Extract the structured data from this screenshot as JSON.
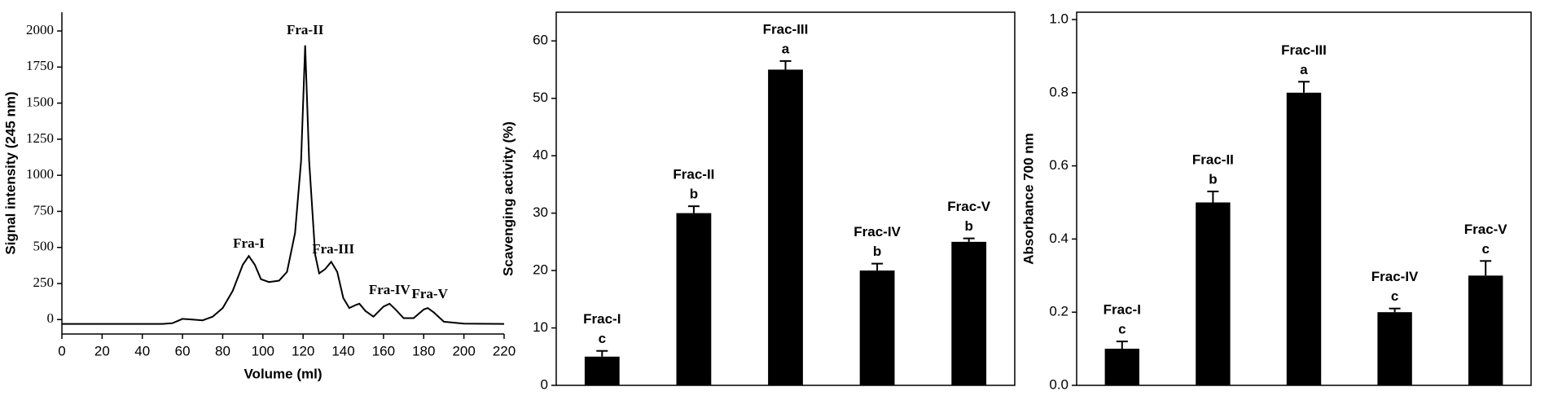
{
  "chart_data": [
    {
      "type": "line",
      "xlabel": "Volume (ml)",
      "ylabel": "Signal intensity (245 nm)",
      "x": [
        0,
        50,
        55,
        60,
        65,
        70,
        75,
        80,
        85,
        90,
        93,
        96,
        99,
        103,
        108,
        112,
        116,
        119,
        121,
        123,
        126,
        128,
        131,
        134,
        137,
        140,
        143,
        146,
        148,
        151,
        155,
        160,
        163,
        166,
        170,
        175,
        180,
        182,
        185,
        190,
        200,
        220
      ],
      "values": [
        -30,
        -30,
        -25,
        5,
        0,
        -5,
        20,
        80,
        200,
        380,
        440,
        380,
        280,
        260,
        270,
        330,
        600,
        1100,
        1900,
        1100,
        450,
        320,
        350,
        400,
        330,
        150,
        80,
        100,
        110,
        60,
        20,
        90,
        110,
        70,
        10,
        10,
        70,
        80,
        50,
        -15,
        -28,
        -30
      ],
      "color": "#000000",
      "annotations": [
        "Fra-I",
        "Fra-II",
        "Fra-III",
        "Fra-IV",
        "Fra-V"
      ],
      "xlim": [
        0,
        220
      ],
      "xticks": [
        0,
        20,
        40,
        60,
        80,
        100,
        120,
        140,
        160,
        180,
        200,
        220
      ],
      "ylim": [
        -100,
        2130
      ],
      "yticks": [
        0,
        250,
        500,
        750,
        1000,
        1250,
        1500,
        1750,
        2000
      ]
    },
    {
      "type": "bar",
      "ylabel": "Scavenging activity (%)",
      "categories": [
        "Frac-I",
        "Frac-II",
        "Frac-III",
        "Frac-IV",
        "Frac-V"
      ],
      "values": [
        5,
        30,
        55,
        20,
        25
      ],
      "errors": [
        1,
        1.2,
        1.5,
        1.2,
        0.6
      ],
      "letters": [
        "c",
        "b",
        "a",
        "b",
        "b"
      ],
      "color": "#000000",
      "ylim": [
        0,
        65
      ],
      "yticks": [
        0,
        10,
        20,
        30,
        40,
        50,
        60
      ]
    },
    {
      "type": "bar",
      "ylabel": "Absorbance 700 nm",
      "categories": [
        "Frac-I",
        "Frac-II",
        "Frac-III",
        "Frac-IV",
        "Frac-V"
      ],
      "values": [
        0.1,
        0.5,
        0.8,
        0.2,
        0.3
      ],
      "errors": [
        0.02,
        0.03,
        0.03,
        0.01,
        0.04
      ],
      "letters": [
        "c",
        "b",
        "a",
        "c",
        "c"
      ],
      "color": "#000000",
      "ylim": [
        0,
        1.02
      ],
      "yticks": [
        {
          "value": 0,
          "label": "0.0"
        },
        0.2,
        0.4,
        0.6,
        0.8,
        {
          "value": 1,
          "label": "1.0"
        }
      ]
    }
  ]
}
